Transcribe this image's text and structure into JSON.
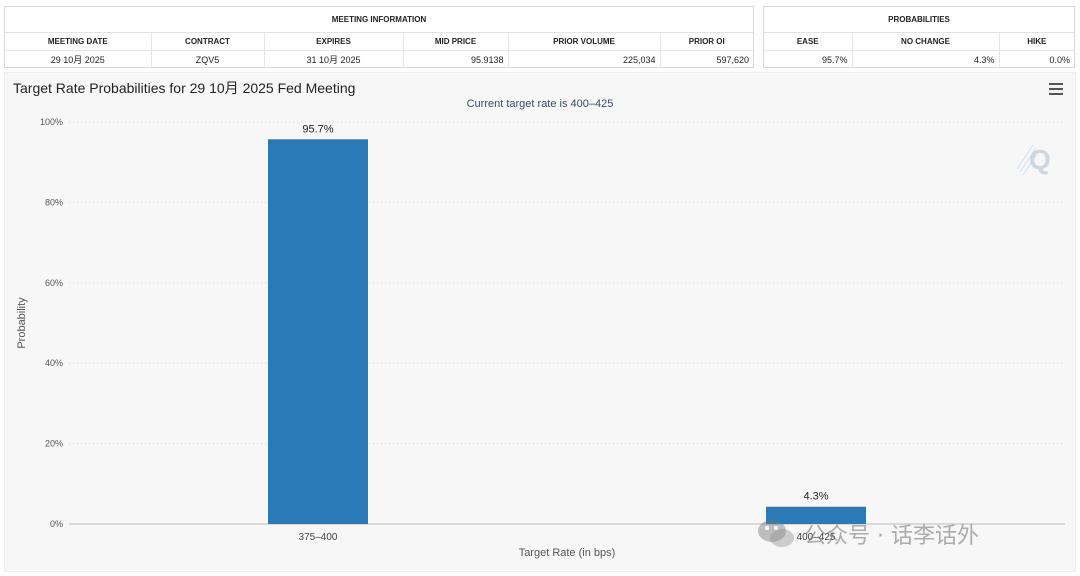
{
  "meeting_info": {
    "title": "MEETING INFORMATION",
    "headers": [
      "MEETING DATE",
      "CONTRACT",
      "EXPIRES",
      "MID PRICE",
      "PRIOR VOLUME",
      "PRIOR OI"
    ],
    "row": [
      "29 10月 2025",
      "ZQV5",
      "31 10月 2025",
      "95.9138",
      "225,034",
      "597,620"
    ]
  },
  "probabilities": {
    "title": "PROBABILITIES",
    "headers": [
      "EASE",
      "NO CHANGE",
      "HIKE"
    ],
    "row": [
      "95.7%",
      "4.3%",
      "0.0%"
    ]
  },
  "chart": {
    "title": "Target Rate Probabilities for 29 10月 2025 Fed Meeting",
    "subtitle": "Current target rate is 400–425",
    "menu_icon": "hamburger-menu-icon",
    "logo_icon": "cme-q-logo-icon"
  },
  "chart_data": {
    "type": "bar",
    "title": "Target Rate Probabilities for 29 10月 2025 Fed Meeting",
    "subtitle": "Current target rate is 400–425",
    "categories": [
      "375–400",
      "400–425"
    ],
    "values": [
      95.7,
      4.3
    ],
    "data_labels": [
      "95.7%",
      "4.3%"
    ],
    "xlabel": "Target Rate (in bps)",
    "ylabel": "Probability",
    "ylim": [
      0,
      100
    ],
    "yticks": [
      0,
      20,
      40,
      60,
      80,
      100
    ],
    "ytick_labels": [
      "0%",
      "20%",
      "40%",
      "60%",
      "80%",
      "100%"
    ],
    "grid": true,
    "bar_color": "#2a7ab8"
  },
  "watermark": {
    "text": "公众号 · 话李话外"
  }
}
